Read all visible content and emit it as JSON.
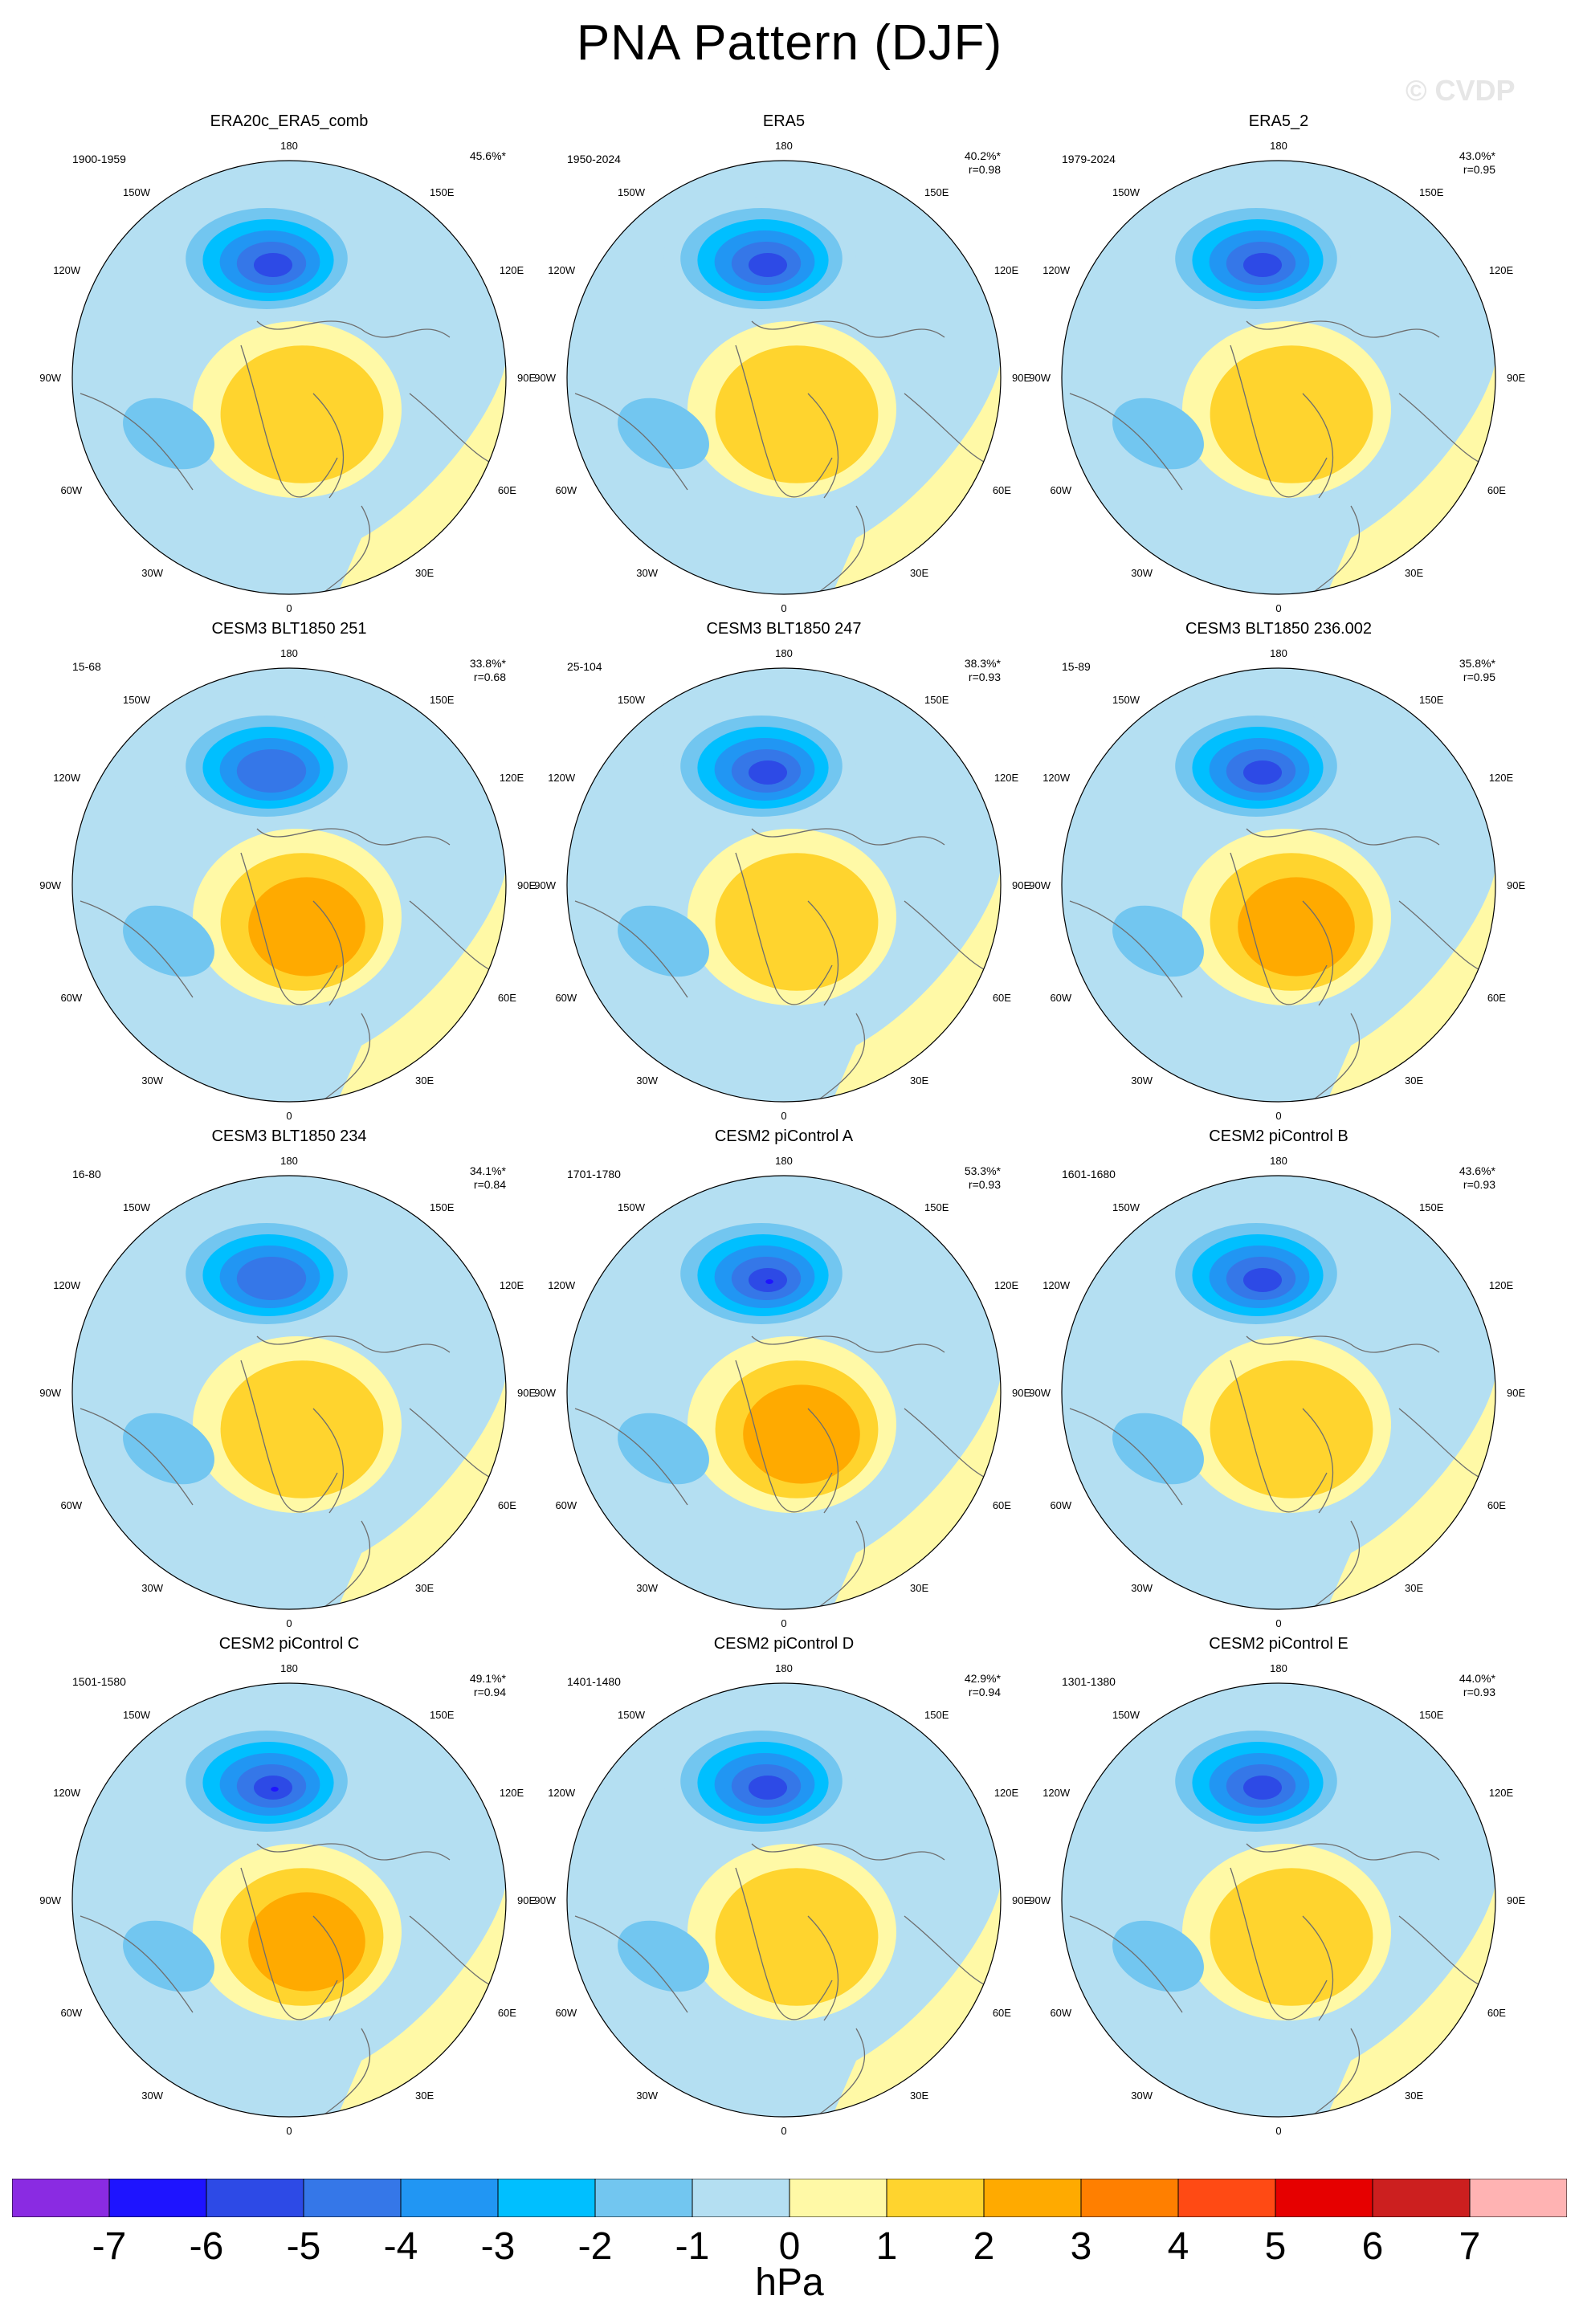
{
  "figure": {
    "title": "PNA Pattern (DJF)",
    "watermark": "© CVDP",
    "units": "hPa"
  },
  "colors": {
    "levels": [
      "#8a2be2",
      "#1e14ff",
      "#2d4ae6",
      "#3577e8",
      "#2196f3",
      "#00bfff",
      "#72c6f0",
      "#b4dff2",
      "#fff9a6",
      "#ffd42e",
      "#ffaa00",
      "#ff7f00",
      "#ff4a14",
      "#e60000",
      "#cc1f1f",
      "#ffb3b3"
    ],
    "coast": "#6e6e6e"
  },
  "chart_data": {
    "type": "heatmap",
    "projection": "polar-stereographic-north",
    "colorbar": {
      "ticks": [
        -7,
        -6,
        -5,
        -4,
        -3,
        -2,
        -1,
        0,
        1,
        2,
        3,
        4,
        5,
        6,
        7
      ],
      "tick_labels": [
        "-7",
        "-6",
        "-5",
        "-4",
        "-3",
        "-2",
        "-1",
        "0",
        "1",
        "2",
        "3",
        "4",
        "5",
        "6",
        "7"
      ],
      "label": "hPa"
    },
    "lon_labels": [
      "180",
      "150E",
      "120E",
      "90E",
      "60E",
      "30E",
      "0",
      "30W",
      "60W",
      "90W",
      "120W",
      "150W"
    ],
    "panels": [
      {
        "name": "ERA20c_ERA5_comb",
        "period": "1900-1959",
        "pct": "45.6%*",
        "r": "",
        "low": -6,
        "high": 2
      },
      {
        "name": "ERA5",
        "period": "1950-2024",
        "pct": "40.2%*",
        "r": "r=0.98",
        "low": -6,
        "high": 2
      },
      {
        "name": "ERA5_2",
        "period": "1979-2024",
        "pct": "43.0%*",
        "r": "r=0.95",
        "low": -6,
        "high": 2
      },
      {
        "name": "CESM3 BLT1850 251",
        "period": "15-68",
        "pct": "33.8%*",
        "r": "r=0.68",
        "low": -5,
        "high": 3
      },
      {
        "name": "CESM3 BLT1850 247",
        "period": "25-104",
        "pct": "38.3%*",
        "r": "r=0.93",
        "low": -6,
        "high": 2
      },
      {
        "name": "CESM3 BLT1850 236.002",
        "period": "15-89",
        "pct": "35.8%*",
        "r": "r=0.95",
        "low": -6,
        "high": 3
      },
      {
        "name": "CESM3 BLT1850 234",
        "period": "16-80",
        "pct": "34.1%*",
        "r": "r=0.84",
        "low": -5,
        "high": 2
      },
      {
        "name": "CESM2 piControl A",
        "period": "1701-1780",
        "pct": "53.3%*",
        "r": "r=0.93",
        "low": -7,
        "high": 3
      },
      {
        "name": "CESM2 piControl B",
        "period": "1601-1680",
        "pct": "43.6%*",
        "r": "r=0.93",
        "low": -6,
        "high": 2
      },
      {
        "name": "CESM2 piControl C",
        "period": "1501-1580",
        "pct": "49.1%*",
        "r": "r=0.94",
        "low": -7,
        "high": 3
      },
      {
        "name": "CESM2 piControl D",
        "period": "1401-1480",
        "pct": "42.9%*",
        "r": "r=0.94",
        "low": -6,
        "high": 2
      },
      {
        "name": "CESM2 piControl E",
        "period": "1301-1380",
        "pct": "44.0%*",
        "r": "r=0.93",
        "low": -6,
        "high": 2
      }
    ]
  }
}
